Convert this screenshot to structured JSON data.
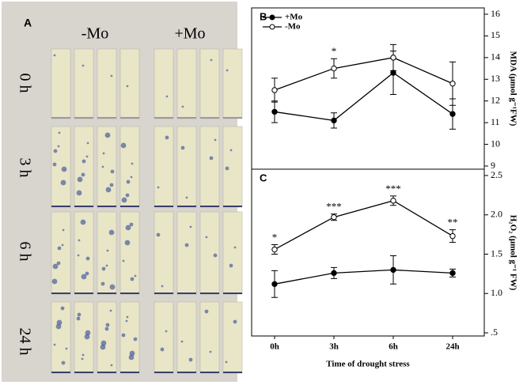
{
  "panel_a": {
    "label": "A",
    "columns": [
      "-Mo",
      "+Mo"
    ],
    "rows": [
      "0 h",
      "3 h",
      "6 h",
      "24 h"
    ]
  },
  "chart_data": [
    {
      "type": "line",
      "label": "B",
      "y_label": "MDA (μmol g⁻¹FW)",
      "ylim": [
        9,
        16
      ],
      "yticks": [
        9,
        10,
        11,
        12,
        13,
        14,
        15,
        16
      ],
      "series": [
        {
          "name": "+Mo",
          "color": "#000000",
          "marker": "filled",
          "values": [
            11.5,
            11.1,
            13.3,
            11.4
          ],
          "errors": [
            0.5,
            0.35,
            1.0,
            0.7
          ]
        },
        {
          "name": "-Mo",
          "color": "#000000",
          "marker": "open",
          "values": [
            12.5,
            13.5,
            14.0,
            12.8
          ],
          "errors": [
            0.55,
            0.45,
            0.6,
            1.0
          ]
        }
      ],
      "annotations": [
        null,
        "*",
        null,
        null
      ]
    },
    {
      "type": "line",
      "label": "C",
      "y_label": "H₂O₂ (μmol g⁻¹ FW)",
      "x_label": "Time of drought stress",
      "categories": [
        "0h",
        "3h",
        "6h",
        "24h"
      ],
      "ylim": [
        0.5,
        2.5
      ],
      "yticks": [
        {
          "value": 0.5,
          "label": ".5"
        },
        {
          "value": 1,
          "label": "1.0"
        },
        1.5,
        {
          "value": 2,
          "label": "2.0"
        },
        2.5
      ],
      "series": [
        {
          "color": "#000000",
          "marker": "filled",
          "values": [
            1.12,
            1.26,
            1.3,
            1.26
          ],
          "errors": [
            0.17,
            0.07,
            0.18,
            0.05
          ]
        },
        {
          "color": "#000000",
          "marker": "open",
          "values": [
            1.56,
            1.97,
            2.18,
            1.73
          ],
          "errors": [
            0.06,
            0.04,
            0.06,
            0.08
          ]
        }
      ],
      "annotations": [
        "*",
        "***",
        "***",
        "**"
      ]
    }
  ]
}
